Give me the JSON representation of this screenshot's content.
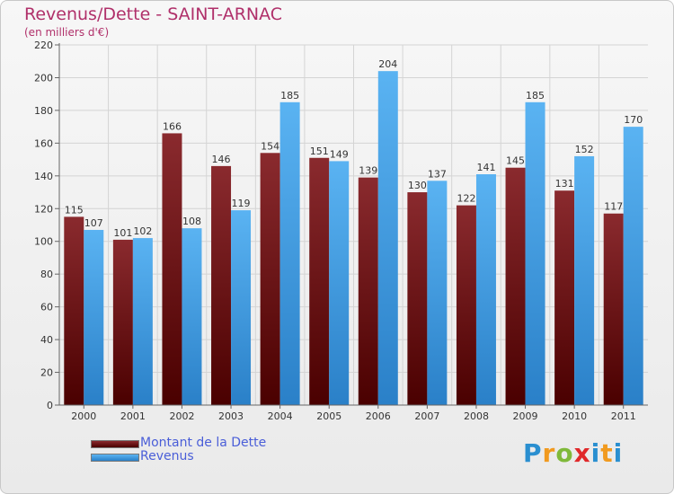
{
  "chart_data": {
    "type": "bar",
    "title": "Revenus/Dette - SAINT-ARNAC",
    "subtitle": "(en milliers d'€)",
    "categories": [
      "2000",
      "2001",
      "2002",
      "2003",
      "2004",
      "2005",
      "2006",
      "2007",
      "2008",
      "2009",
      "2010",
      "2011"
    ],
    "series": [
      {
        "name": "Montant de la Dette",
        "color": "#7a1a1f",
        "values": [
          115,
          101,
          166,
          146,
          154,
          151,
          139,
          130,
          122,
          145,
          131,
          117
        ]
      },
      {
        "name": "Revenus",
        "color": "#4aa3e6",
        "values": [
          107,
          102,
          108,
          119,
          185,
          149,
          204,
          137,
          141,
          185,
          152,
          170
        ]
      }
    ],
    "yticks": [
      0,
      20,
      40,
      60,
      80,
      100,
      120,
      140,
      160,
      180,
      200,
      220
    ],
    "ylim": [
      0,
      220
    ],
    "grid": true,
    "legend_position": "bottom-left"
  },
  "logo": {
    "text": "Proxiti"
  }
}
